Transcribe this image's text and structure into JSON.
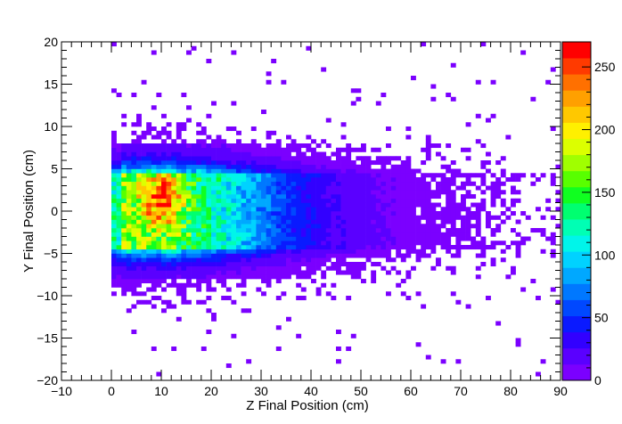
{
  "chart_data": {
    "type": "heatmap",
    "title": "",
    "xlabel": "Z Final Position (cm)",
    "ylabel": "Y Final Position (cm)",
    "xlim": [
      -10,
      90
    ],
    "ylim": [
      -20,
      20
    ],
    "xticks": [
      "−10",
      "0",
      "10",
      "20",
      "30",
      "40",
      "50",
      "60",
      "70",
      "80",
      "90"
    ],
    "yticks": [
      "−20",
      "−15",
      "−10",
      "−5",
      "0",
      "5",
      "10",
      "15",
      "20"
    ],
    "colorbar": {
      "min": 0,
      "max": 270,
      "ticks": [
        "0",
        "50",
        "100",
        "150",
        "200",
        "250"
      ],
      "palette": [
        "#7b00ff",
        "#5a00ff",
        "#3200ff",
        "#0a1aff",
        "#0048ff",
        "#0078ff",
        "#00a8ff",
        "#00d2ff",
        "#00f5ea",
        "#00ffb4",
        "#00ff70",
        "#10ff20",
        "#58ff00",
        "#a0ff00",
        "#dcff00",
        "#fff000",
        "#ffc800",
        "#ffa000",
        "#ff7000",
        "#ff3a00",
        "#ff0000"
      ]
    },
    "bin_size": {
      "z": 1,
      "y": 0.5
    },
    "description": "2D histogram of final particle positions; dense core near Z 0–25 cm, Y −5 to 5 cm peaking ~270 counts near Z≈10 cm, Y≈0–3 cm; counts fall off with increasing Z."
  }
}
